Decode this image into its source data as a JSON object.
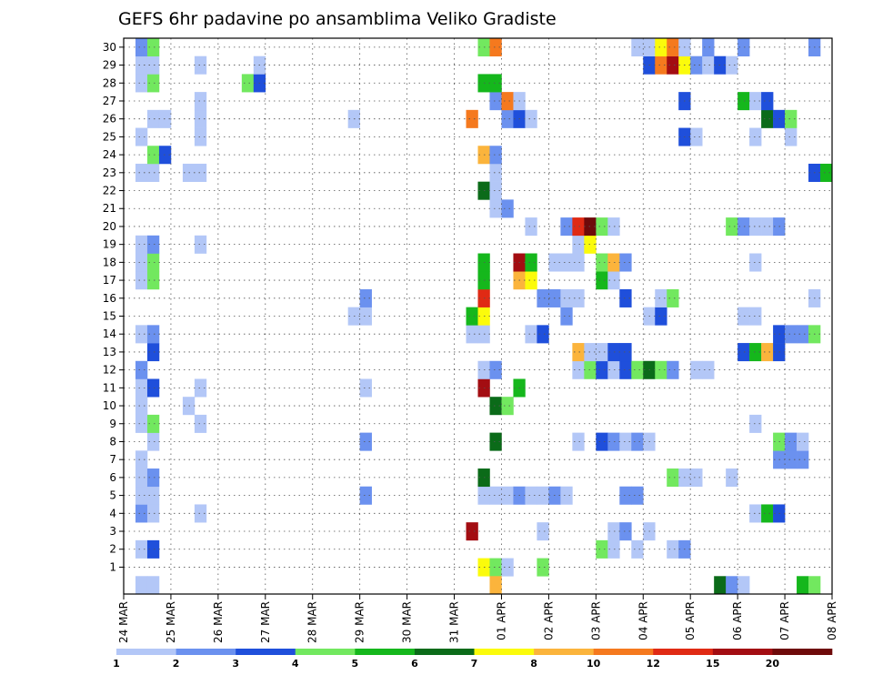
{
  "chart_data": {
    "type": "heatmap",
    "title": "GEFS 6hr padavine po ansamblima Veliko Gradiste",
    "x_tick_labels": [
      "24 MAR",
      "25 MAR",
      "26 MAR",
      "27 MAR",
      "28 MAR",
      "29 MAR",
      "30 MAR",
      "31 MAR",
      "01 APR",
      "02 APR",
      "03 APR",
      "04 APR",
      "05 APR",
      "06 APR",
      "07 APR",
      "08 APR"
    ],
    "y_tick_labels": [
      "1",
      "2",
      "3",
      "4",
      "5",
      "6",
      "7",
      "8",
      "9",
      "10",
      "11",
      "12",
      "13",
      "14",
      "15",
      "16",
      "17",
      "18",
      "19",
      "20",
      "21",
      "22",
      "23",
      "24",
      "25",
      "26",
      "27",
      "28",
      "29",
      "30"
    ],
    "ylim": [
      0,
      30
    ],
    "time_steps": 60,
    "grid": true,
    "colorbar": {
      "labels": [
        "1",
        "2",
        "3",
        "4",
        "5",
        "6",
        "7",
        "8",
        "10",
        "12",
        "15",
        "20"
      ],
      "colors": [
        "#b3c7f7",
        "#6b91ef",
        "#1f4fdb",
        "#72e85f",
        "#15b71c",
        "#0b6b19",
        "#fbfb0b",
        "#fbb43c",
        "#f5791e",
        "#e02a14",
        "#a30d12",
        "#6e0a0a"
      ]
    },
    "cells": [
      [
        1,
        31,
        "#fbfb0b"
      ],
      [
        1,
        32,
        "#72e85f"
      ],
      [
        1,
        33,
        "#b3c7f7"
      ],
      [
        1,
        36,
        "#72e85f"
      ],
      [
        2,
        2,
        "#b3c7f7"
      ],
      [
        2,
        3,
        "#1f4fdb"
      ],
      [
        2,
        41,
        "#72e85f"
      ],
      [
        2,
        42,
        "#b3c7f7"
      ],
      [
        2,
        44,
        "#b3c7f7"
      ],
      [
        2,
        47,
        "#b3c7f7"
      ],
      [
        2,
        48,
        "#6b91ef"
      ],
      [
        3,
        30,
        "#a30d12"
      ],
      [
        3,
        36,
        "#b3c7f7"
      ],
      [
        3,
        42,
        "#b3c7f7"
      ],
      [
        3,
        43,
        "#6b91ef"
      ],
      [
        3,
        45,
        "#b3c7f7"
      ],
      [
        4,
        2,
        "#6b91ef"
      ],
      [
        4,
        3,
        "#b3c7f7"
      ],
      [
        4,
        7,
        "#b3c7f7"
      ],
      [
        4,
        54,
        "#b3c7f7"
      ],
      [
        4,
        55,
        "#15b71c"
      ],
      [
        4,
        56,
        "#1f4fdb"
      ],
      [
        5,
        2,
        "#b3c7f7"
      ],
      [
        5,
        3,
        "#b3c7f7"
      ],
      [
        5,
        21,
        "#6b91ef"
      ],
      [
        5,
        31,
        "#b3c7f7"
      ],
      [
        5,
        32,
        "#b3c7f7"
      ],
      [
        5,
        33,
        "#b3c7f7"
      ],
      [
        5,
        34,
        "#6b91ef"
      ],
      [
        5,
        35,
        "#b3c7f7"
      ],
      [
        5,
        36,
        "#b3c7f7"
      ],
      [
        5,
        37,
        "#6b91ef"
      ],
      [
        5,
        38,
        "#b3c7f7"
      ],
      [
        5,
        43,
        "#6b91ef"
      ],
      [
        5,
        44,
        "#6b91ef"
      ],
      [
        6,
        2,
        "#b3c7f7"
      ],
      [
        6,
        3,
        "#6b91ef"
      ],
      [
        6,
        31,
        "#0b6b19"
      ],
      [
        6,
        47,
        "#72e85f"
      ],
      [
        6,
        48,
        "#b3c7f7"
      ],
      [
        6,
        49,
        "#b3c7f7"
      ],
      [
        6,
        52,
        "#b3c7f7"
      ],
      [
        7,
        2,
        "#b3c7f7"
      ],
      [
        7,
        56,
        "#6b91ef"
      ],
      [
        7,
        57,
        "#6b91ef"
      ],
      [
        7,
        58,
        "#6b91ef"
      ],
      [
        8,
        3,
        "#b3c7f7"
      ],
      [
        8,
        21,
        "#6b91ef"
      ],
      [
        8,
        32,
        "#0b6b19"
      ],
      [
        8,
        39,
        "#b3c7f7"
      ],
      [
        8,
        41,
        "#1f4fdb"
      ],
      [
        8,
        42,
        "#6b91ef"
      ],
      [
        8,
        43,
        "#b3c7f7"
      ],
      [
        8,
        44,
        "#6b91ef"
      ],
      [
        8,
        45,
        "#b3c7f7"
      ],
      [
        8,
        56,
        "#72e85f"
      ],
      [
        8,
        57,
        "#6b91ef"
      ],
      [
        8,
        58,
        "#b3c7f7"
      ],
      [
        9,
        2,
        "#b3c7f7"
      ],
      [
        9,
        3,
        "#72e85f"
      ],
      [
        9,
        7,
        "#b3c7f7"
      ],
      [
        9,
        54,
        "#b3c7f7"
      ],
      [
        10,
        2,
        "#b3c7f7"
      ],
      [
        10,
        6,
        "#b3c7f7"
      ],
      [
        10,
        32,
        "#0b6b19"
      ],
      [
        10,
        33,
        "#72e85f"
      ],
      [
        11,
        2,
        "#b3c7f7"
      ],
      [
        11,
        3,
        "#1f4fdb"
      ],
      [
        11,
        7,
        "#b3c7f7"
      ],
      [
        11,
        21,
        "#b3c7f7"
      ],
      [
        11,
        31,
        "#a30d12"
      ],
      [
        11,
        34,
        "#15b71c"
      ],
      [
        12,
        2,
        "#6b91ef"
      ],
      [
        12,
        31,
        "#b3c7f7"
      ],
      [
        12,
        32,
        "#6b91ef"
      ],
      [
        12,
        39,
        "#b3c7f7"
      ],
      [
        12,
        40,
        "#72e85f"
      ],
      [
        12,
        41,
        "#1f4fdb"
      ],
      [
        12,
        42,
        "#b3c7f7"
      ],
      [
        12,
        43,
        "#1f4fdb"
      ],
      [
        12,
        44,
        "#72e85f"
      ],
      [
        12,
        45,
        "#0b6b19"
      ],
      [
        12,
        46,
        "#72e85f"
      ],
      [
        12,
        47,
        "#6b91ef"
      ],
      [
        12,
        49,
        "#b3c7f7"
      ],
      [
        12,
        50,
        "#b3c7f7"
      ],
      [
        13,
        3,
        "#1f4fdb"
      ],
      [
        13,
        39,
        "#fbb43c"
      ],
      [
        13,
        40,
        "#b3c7f7"
      ],
      [
        13,
        41,
        "#b3c7f7"
      ],
      [
        13,
        42,
        "#1f4fdb"
      ],
      [
        13,
        43,
        "#1f4fdb"
      ],
      [
        13,
        53,
        "#1f4fdb"
      ],
      [
        13,
        54,
        "#15b71c"
      ],
      [
        13,
        55,
        "#fbb43c"
      ],
      [
        13,
        56,
        "#1f4fdb"
      ],
      [
        14,
        2,
        "#b3c7f7"
      ],
      [
        14,
        3,
        "#6b91ef"
      ],
      [
        14,
        30,
        "#b3c7f7"
      ],
      [
        14,
        31,
        "#b3c7f7"
      ],
      [
        14,
        35,
        "#b3c7f7"
      ],
      [
        14,
        36,
        "#1f4fdb"
      ],
      [
        14,
        56,
        "#1f4fdb"
      ],
      [
        14,
        57,
        "#6b91ef"
      ],
      [
        14,
        58,
        "#6b91ef"
      ],
      [
        14,
        59,
        "#72e85f"
      ],
      [
        15,
        20,
        "#b3c7f7"
      ],
      [
        15,
        21,
        "#b3c7f7"
      ],
      [
        15,
        30,
        "#15b71c"
      ],
      [
        15,
        31,
        "#fbfb0b"
      ],
      [
        15,
        38,
        "#6b91ef"
      ],
      [
        15,
        45,
        "#b3c7f7"
      ],
      [
        15,
        46,
        "#1f4fdb"
      ],
      [
        15,
        53,
        "#b3c7f7"
      ],
      [
        15,
        54,
        "#b3c7f7"
      ],
      [
        16,
        21,
        "#6b91ef"
      ],
      [
        16,
        31,
        "#e02a14"
      ],
      [
        16,
        36,
        "#6b91ef"
      ],
      [
        16,
        37,
        "#6b91ef"
      ],
      [
        16,
        38,
        "#b3c7f7"
      ],
      [
        16,
        39,
        "#b3c7f7"
      ],
      [
        16,
        43,
        "#1f4fdb"
      ],
      [
        16,
        46,
        "#b3c7f7"
      ],
      [
        16,
        47,
        "#72e85f"
      ],
      [
        16,
        59,
        "#b3c7f7"
      ],
      [
        17,
        2,
        "#b3c7f7"
      ],
      [
        17,
        3,
        "#72e85f"
      ],
      [
        17,
        31,
        "#15b71c"
      ],
      [
        17,
        34,
        "#fbb43c"
      ],
      [
        17,
        35,
        "#fbfb0b"
      ],
      [
        17,
        41,
        "#15b71c"
      ],
      [
        17,
        42,
        "#b3c7f7"
      ],
      [
        18,
        2,
        "#b3c7f7"
      ],
      [
        18,
        3,
        "#72e85f"
      ],
      [
        18,
        31,
        "#15b71c"
      ],
      [
        18,
        34,
        "#a30d12"
      ],
      [
        18,
        35,
        "#15b71c"
      ],
      [
        18,
        37,
        "#b3c7f7"
      ],
      [
        18,
        38,
        "#b3c7f7"
      ],
      [
        18,
        39,
        "#b3c7f7"
      ],
      [
        18,
        41,
        "#72e85f"
      ],
      [
        18,
        42,
        "#fbb43c"
      ],
      [
        18,
        43,
        "#6b91ef"
      ],
      [
        18,
        54,
        "#b3c7f7"
      ],
      [
        19,
        2,
        "#b3c7f7"
      ],
      [
        19,
        3,
        "#6b91ef"
      ],
      [
        19,
        7,
        "#b3c7f7"
      ],
      [
        19,
        39,
        "#b3c7f7"
      ],
      [
        19,
        40,
        "#fbfb0b"
      ],
      [
        20,
        35,
        "#b3c7f7"
      ],
      [
        20,
        38,
        "#6b91ef"
      ],
      [
        20,
        39,
        "#e02a14"
      ],
      [
        20,
        40,
        "#6e0a0a"
      ],
      [
        20,
        41,
        "#72e85f"
      ],
      [
        20,
        42,
        "#b3c7f7"
      ],
      [
        20,
        52,
        "#72e85f"
      ],
      [
        20,
        53,
        "#6b91ef"
      ],
      [
        20,
        54,
        "#b3c7f7"
      ],
      [
        20,
        55,
        "#b3c7f7"
      ],
      [
        20,
        56,
        "#6b91ef"
      ],
      [
        21,
        32,
        "#b3c7f7"
      ],
      [
        21,
        33,
        "#6b91ef"
      ],
      [
        22,
        31,
        "#0b6b19"
      ],
      [
        22,
        32,
        "#b3c7f7"
      ],
      [
        23,
        2,
        "#b3c7f7"
      ],
      [
        23,
        3,
        "#b3c7f7"
      ],
      [
        23,
        6,
        "#b3c7f7"
      ],
      [
        23,
        7,
        "#b3c7f7"
      ],
      [
        23,
        32,
        "#b3c7f7"
      ],
      [
        23,
        59,
        "#1f4fdb"
      ],
      [
        23,
        60,
        "#15b71c"
      ],
      [
        24,
        3,
        "#72e85f"
      ],
      [
        24,
        4,
        "#1f4fdb"
      ],
      [
        24,
        31,
        "#fbb43c"
      ],
      [
        24,
        32,
        "#6b91ef"
      ],
      [
        25,
        2,
        "#b3c7f7"
      ],
      [
        25,
        7,
        "#b3c7f7"
      ],
      [
        25,
        48,
        "#1f4fdb"
      ],
      [
        25,
        49,
        "#b3c7f7"
      ],
      [
        25,
        54,
        "#b3c7f7"
      ],
      [
        25,
        57,
        "#b3c7f7"
      ],
      [
        26,
        3,
        "#b3c7f7"
      ],
      [
        26,
        4,
        "#b3c7f7"
      ],
      [
        26,
        7,
        "#b3c7f7"
      ],
      [
        26,
        30,
        "#f5791e"
      ],
      [
        26,
        33,
        "#6b91ef"
      ],
      [
        26,
        34,
        "#1f4fdb"
      ],
      [
        26,
        35,
        "#b3c7f7"
      ],
      [
        26,
        20,
        "#b3c7f7"
      ],
      [
        26,
        55,
        "#0b6b19"
      ],
      [
        26,
        56,
        "#1f4fdb"
      ],
      [
        26,
        57,
        "#72e85f"
      ],
      [
        27,
        7,
        "#b3c7f7"
      ],
      [
        27,
        32,
        "#6b91ef"
      ],
      [
        27,
        33,
        "#f5791e"
      ],
      [
        27,
        34,
        "#b3c7f7"
      ],
      [
        27,
        48,
        "#1f4fdb"
      ],
      [
        27,
        53,
        "#15b71c"
      ],
      [
        27,
        54,
        "#b3c7f7"
      ],
      [
        27,
        55,
        "#1f4fdb"
      ],
      [
        28,
        2,
        "#b3c7f7"
      ],
      [
        28,
        3,
        "#72e85f"
      ],
      [
        28,
        11,
        "#72e85f"
      ],
      [
        28,
        12,
        "#1f4fdb"
      ],
      [
        28,
        31,
        "#15b71c"
      ],
      [
        28,
        32,
        "#15b71c"
      ],
      [
        29,
        2,
        "#b3c7f7"
      ],
      [
        29,
        3,
        "#b3c7f7"
      ],
      [
        29,
        7,
        "#b3c7f7"
      ],
      [
        29,
        12,
        "#b3c7f7"
      ],
      [
        29,
        45,
        "#1f4fdb"
      ],
      [
        29,
        46,
        "#f5791e"
      ],
      [
        29,
        47,
        "#a30d12"
      ],
      [
        29,
        48,
        "#fbfb0b"
      ],
      [
        29,
        49,
        "#6b91ef"
      ],
      [
        29,
        50,
        "#b3c7f7"
      ],
      [
        29,
        51,
        "#1f4fdb"
      ],
      [
        29,
        52,
        "#b3c7f7"
      ],
      [
        30,
        2,
        "#6b91ef"
      ],
      [
        30,
        3,
        "#72e85f"
      ],
      [
        30,
        31,
        "#72e85f"
      ],
      [
        30,
        32,
        "#f5791e"
      ],
      [
        30,
        44,
        "#b3c7f7"
      ],
      [
        30,
        45,
        "#b3c7f7"
      ],
      [
        30,
        46,
        "#fbfb0b"
      ],
      [
        30,
        47,
        "#f5791e"
      ],
      [
        30,
        48,
        "#b3c7f7"
      ],
      [
        30,
        50,
        "#6b91ef"
      ],
      [
        30,
        53,
        "#6b91ef"
      ],
      [
        30,
        59,
        "#6b91ef"
      ],
      [
        0,
        2,
        "#b3c7f7"
      ],
      [
        0,
        3,
        "#b3c7f7"
      ],
      [
        0,
        32,
        "#fbb43c"
      ],
      [
        0,
        51,
        "#0b6b19"
      ],
      [
        0,
        52,
        "#6b91ef"
      ],
      [
        0,
        53,
        "#b3c7f7"
      ],
      [
        0,
        58,
        "#15b71c"
      ],
      [
        0,
        59,
        "#72e85f"
      ]
    ]
  }
}
